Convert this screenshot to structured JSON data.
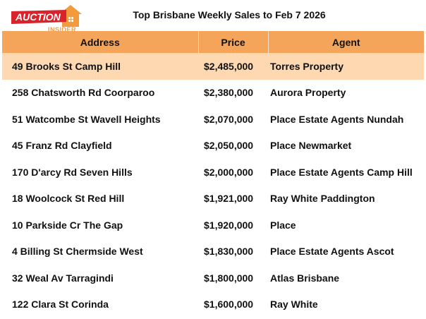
{
  "logo": {
    "word_top": "AUCTION",
    "word_bottom": "INSIDER",
    "brand_red": "#d8232a",
    "brand_orange": "#f39a3c"
  },
  "title": "Top Brisbane Weekly Sales to Feb 7 2026",
  "table": {
    "headers": {
      "address": "Address",
      "price": "Price",
      "agent": "Agent"
    },
    "header_color": "#f5a55a",
    "highlight_color": "#fdd8b0",
    "rows": [
      {
        "address": "49 Brooks St Camp Hill",
        "price": "$2,485,000",
        "agent": "Torres Property"
      },
      {
        "address": "258 Chatsworth Rd Coorparoo",
        "price": "$2,380,000",
        "agent": "Aurora Property"
      },
      {
        "address": "51 Watcombe St Wavell Heights",
        "price": "$2,070,000",
        "agent": "Place Estate Agents Nundah"
      },
      {
        "address": "45 Franz Rd Clayfield",
        "price": "$2,050,000",
        "agent": "Place Newmarket"
      },
      {
        "address": "170 D'arcy Rd Seven Hills",
        "price": "$2,000,000",
        "agent": "Place Estate Agents Camp Hill"
      },
      {
        "address": "18 Woolcock St Red Hill",
        "price": "$1,921,000",
        "agent": "Ray White Paddington"
      },
      {
        "address": "10 Parkside Cr The Gap",
        "price": "$1,920,000",
        "agent": "Place"
      },
      {
        "address": "4 Billing St Chermside West",
        "price": "$1,830,000",
        "agent": "Place Estate Agents Ascot"
      },
      {
        "address": "32 Weal Av Tarragindi",
        "price": "$1,800,000",
        "agent": "Atlas Brisbane"
      },
      {
        "address": "122 Clara St Corinda",
        "price": "$1,600,000",
        "agent": "Ray White"
      }
    ]
  }
}
